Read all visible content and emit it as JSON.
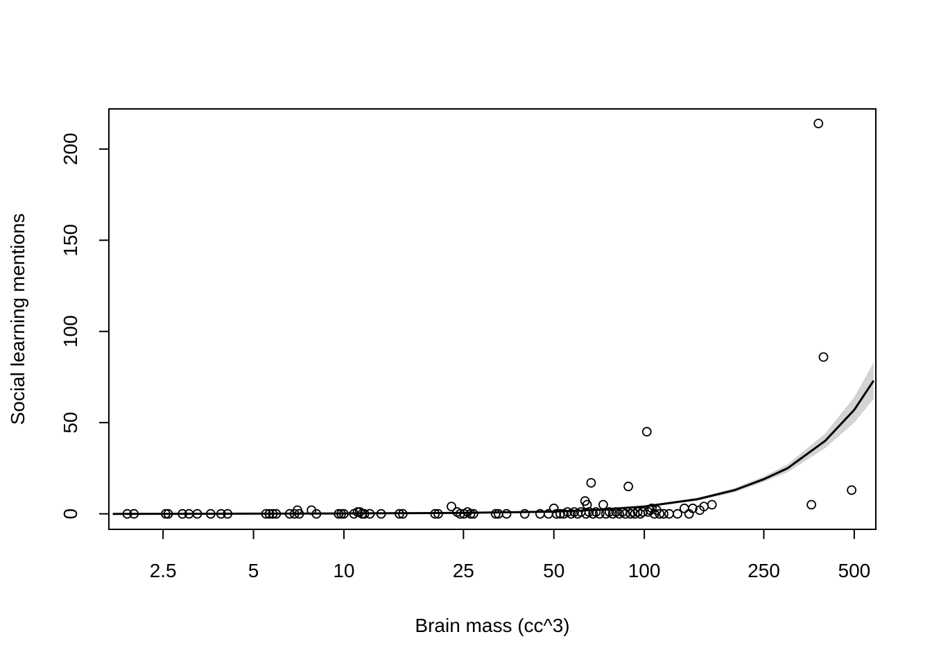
{
  "chart_data": {
    "type": "scatter",
    "xlabel": "Brain mass (cc^3)",
    "ylabel": "Social learning mentions",
    "x_scale": "log",
    "xlim": [
      1.65,
      590
    ],
    "ylim": [
      -8.5,
      222
    ],
    "x_ticks": [
      2.5,
      5,
      10,
      25,
      50,
      100,
      250,
      500
    ],
    "x_tick_labels": [
      "2.5",
      "5",
      "10",
      "25",
      "50",
      "100",
      "250",
      "500"
    ],
    "y_ticks": [
      0,
      50,
      100,
      150,
      200
    ],
    "y_tick_labels": [
      "0",
      "50",
      "100",
      "150",
      "200"
    ],
    "grid": false,
    "legend": "none",
    "colors": {
      "points": "#000000",
      "fit_line": "#000000",
      "ci_band": "#d3d3d3"
    },
    "points": [
      {
        "x": 1.9,
        "y": 0
      },
      {
        "x": 2.0,
        "y": 0
      },
      {
        "x": 2.55,
        "y": 0
      },
      {
        "x": 2.6,
        "y": 0
      },
      {
        "x": 2.9,
        "y": 0
      },
      {
        "x": 3.05,
        "y": 0
      },
      {
        "x": 3.25,
        "y": 0
      },
      {
        "x": 3.6,
        "y": 0
      },
      {
        "x": 3.9,
        "y": 0
      },
      {
        "x": 4.1,
        "y": 0
      },
      {
        "x": 5.5,
        "y": 0
      },
      {
        "x": 5.65,
        "y": 0
      },
      {
        "x": 5.8,
        "y": 0
      },
      {
        "x": 5.95,
        "y": 0
      },
      {
        "x": 6.6,
        "y": 0
      },
      {
        "x": 6.85,
        "y": 0
      },
      {
        "x": 7.0,
        "y": 2
      },
      {
        "x": 7.1,
        "y": 0
      },
      {
        "x": 7.8,
        "y": 2
      },
      {
        "x": 8.1,
        "y": 0
      },
      {
        "x": 9.6,
        "y": 0
      },
      {
        "x": 9.8,
        "y": 0
      },
      {
        "x": 10.0,
        "y": 0
      },
      {
        "x": 10.8,
        "y": 0
      },
      {
        "x": 11.1,
        "y": 1
      },
      {
        "x": 11.3,
        "y": 1
      },
      {
        "x": 11.5,
        "y": 0
      },
      {
        "x": 11.7,
        "y": 0
      },
      {
        "x": 12.2,
        "y": 0
      },
      {
        "x": 13.3,
        "y": 0
      },
      {
        "x": 15.3,
        "y": 0
      },
      {
        "x": 15.7,
        "y": 0
      },
      {
        "x": 20.1,
        "y": 0
      },
      {
        "x": 20.6,
        "y": 0
      },
      {
        "x": 22.8,
        "y": 4
      },
      {
        "x": 23.8,
        "y": 1
      },
      {
        "x": 24.4,
        "y": 0
      },
      {
        "x": 25.1,
        "y": 0
      },
      {
        "x": 25.8,
        "y": 1
      },
      {
        "x": 26.4,
        "y": 0
      },
      {
        "x": 27.0,
        "y": 0
      },
      {
        "x": 32.0,
        "y": 0
      },
      {
        "x": 32.7,
        "y": 0
      },
      {
        "x": 34.8,
        "y": 0
      },
      {
        "x": 40.0,
        "y": 0
      },
      {
        "x": 45.0,
        "y": 0
      },
      {
        "x": 48.0,
        "y": 0
      },
      {
        "x": 50.0,
        "y": 3
      },
      {
        "x": 51.0,
        "y": 0
      },
      {
        "x": 52.5,
        "y": 0
      },
      {
        "x": 54.0,
        "y": 0
      },
      {
        "x": 55.5,
        "y": 1
      },
      {
        "x": 57.0,
        "y": 0
      },
      {
        "x": 58.5,
        "y": 1
      },
      {
        "x": 60.0,
        "y": 0
      },
      {
        "x": 61.5,
        "y": 1
      },
      {
        "x": 63.5,
        "y": 7
      },
      {
        "x": 64.0,
        "y": 0
      },
      {
        "x": 64.5,
        "y": 5
      },
      {
        "x": 65.5,
        "y": 1
      },
      {
        "x": 66.5,
        "y": 17
      },
      {
        "x": 67.5,
        "y": 0
      },
      {
        "x": 69.0,
        "y": 1
      },
      {
        "x": 71.0,
        "y": 0
      },
      {
        "x": 73.0,
        "y": 5
      },
      {
        "x": 74.5,
        "y": 0
      },
      {
        "x": 76.5,
        "y": 1
      },
      {
        "x": 78.5,
        "y": 0
      },
      {
        "x": 80.5,
        "y": 1
      },
      {
        "x": 82.5,
        "y": 0
      },
      {
        "x": 84.5,
        "y": 1
      },
      {
        "x": 86.5,
        "y": 0
      },
      {
        "x": 88.5,
        "y": 15
      },
      {
        "x": 90.0,
        "y": 0
      },
      {
        "x": 91.5,
        "y": 1
      },
      {
        "x": 93.0,
        "y": 0
      },
      {
        "x": 95.0,
        "y": 1
      },
      {
        "x": 97.0,
        "y": 0
      },
      {
        "x": 99.0,
        "y": 1
      },
      {
        "x": 102.0,
        "y": 45
      },
      {
        "x": 103.0,
        "y": 1
      },
      {
        "x": 104.5,
        "y": 2
      },
      {
        "x": 106.0,
        "y": 3
      },
      {
        "x": 108.0,
        "y": 0
      },
      {
        "x": 110.0,
        "y": 2
      },
      {
        "x": 112.5,
        "y": 0
      },
      {
        "x": 116.0,
        "y": 0
      },
      {
        "x": 121.0,
        "y": 0
      },
      {
        "x": 129.0,
        "y": 0
      },
      {
        "x": 136.0,
        "y": 3
      },
      {
        "x": 141.0,
        "y": 0
      },
      {
        "x": 145.0,
        "y": 3
      },
      {
        "x": 153.0,
        "y": 2
      },
      {
        "x": 158.0,
        "y": 4
      },
      {
        "x": 168.0,
        "y": 5
      },
      {
        "x": 360.0,
        "y": 5
      },
      {
        "x": 380.0,
        "y": 214
      },
      {
        "x": 395.0,
        "y": 86
      },
      {
        "x": 490.0,
        "y": 13
      }
    ],
    "fit": {
      "x": [
        1.7,
        5,
        10,
        25,
        50,
        70,
        100,
        150,
        200,
        250,
        300,
        400,
        500,
        580
      ],
      "y": [
        0,
        0.1,
        0.2,
        0.5,
        1.2,
        2.2,
        4.0,
        8.0,
        13.0,
        19.0,
        25.0,
        40.0,
        57.0,
        73.0
      ],
      "lower": [
        0,
        0.1,
        0.2,
        0.5,
        1.1,
        2.0,
        3.6,
        7.2,
        11.8,
        17.5,
        22.8,
        36.0,
        50.0,
        63.0
      ],
      "upper": [
        0,
        0.1,
        0.2,
        0.6,
        1.3,
        2.4,
        4.4,
        8.8,
        14.2,
        20.5,
        27.2,
        44.0,
        64.0,
        83.0
      ]
    }
  }
}
